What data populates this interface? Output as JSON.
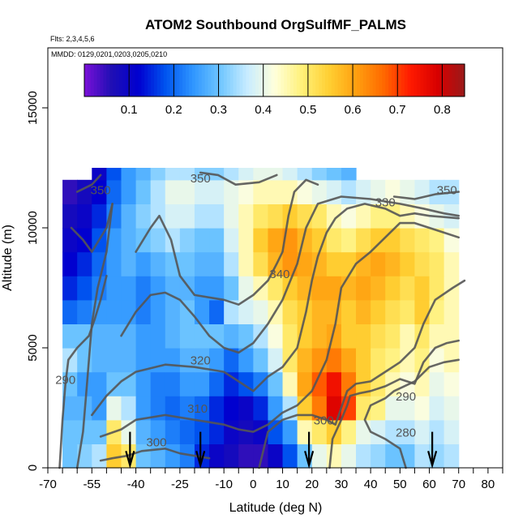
{
  "chart_data": {
    "type": "heatmap",
    "title": "ATOM2 Southbound OrgSulfMF_PALMS",
    "flights_label": "Flts: 2,3,4,5,6",
    "dates_label": "MMDD: 0129,0201,0203,0205,0210",
    "xlabel": "Latitude (deg N)",
    "ylabel": "Altitude (m)",
    "xlim": [
      -70,
      85
    ],
    "ylim": [
      0,
      17500
    ],
    "x_ticks": [
      -70,
      -55,
      -40,
      -25,
      -10,
      0,
      10,
      20,
      30,
      40,
      50,
      60,
      70,
      80
    ],
    "y_ticks": [
      0,
      5000,
      10000,
      15000
    ],
    "colorbar": {
      "min": 0.0,
      "max": 0.85,
      "ticks": [
        0.1,
        0.2,
        0.3,
        0.4,
        0.5,
        0.6,
        0.7,
        0.8
      ],
      "colors": [
        "#7b10d8",
        "#1f0fb4",
        "#0000d0",
        "#0055f0",
        "#2f96ff",
        "#6fc6ff",
        "#c8ecff",
        "#ffffdc",
        "#fff17a",
        "#ffd033",
        "#ffa010",
        "#ff6a00",
        "#ff1a00",
        "#d80000",
        "#9a1a1a"
      ]
    },
    "altitude_bins": [
      0,
      1000,
      2000,
      3000,
      4000,
      5000,
      6000,
      7000,
      8000,
      9000,
      10000,
      11000,
      12000,
      12500
    ],
    "lat_bins": [
      -65,
      -60,
      -55,
      -50,
      -45,
      -40,
      -35,
      -30,
      -25,
      -20,
      -15,
      -10,
      -5,
      0,
      5,
      10,
      15,
      20,
      25,
      30,
      35,
      40,
      45,
      50,
      55,
      60,
      65,
      70
    ],
    "values": [
      [
        0.3,
        0.32,
        0.35,
        0.55,
        0.5,
        0.3,
        0.28,
        0.25,
        0.22,
        0.15,
        0.1,
        0.08,
        0.05,
        0.05,
        0.1,
        0.18,
        0.3,
        0.4,
        0.45,
        0.4,
        0.35,
        0.33,
        0.3,
        0.3,
        0.35,
        0.33,
        0.35
      ],
      [
        0.3,
        0.3,
        0.3,
        0.5,
        0.4,
        0.28,
        0.25,
        0.22,
        0.2,
        0.18,
        0.15,
        0.1,
        0.08,
        0.1,
        0.18,
        0.25,
        0.45,
        0.5,
        0.55,
        0.48,
        0.4,
        0.38,
        0.35,
        0.35,
        0.38,
        0.35,
        0.38
      ],
      [
        0.28,
        0.28,
        0.25,
        0.4,
        0.35,
        0.25,
        0.22,
        0.2,
        0.22,
        0.2,
        0.15,
        0.12,
        0.1,
        0.15,
        0.25,
        0.35,
        0.55,
        0.65,
        0.78,
        0.7,
        0.5,
        0.48,
        0.4,
        0.4,
        0.42,
        0.38,
        0.4
      ],
      [
        0.3,
        0.25,
        0.25,
        0.3,
        0.3,
        0.25,
        0.22,
        0.22,
        0.25,
        0.25,
        0.2,
        0.15,
        0.18,
        0.22,
        0.3,
        0.45,
        0.6,
        0.68,
        0.75,
        0.65,
        0.55,
        0.5,
        0.45,
        0.42,
        0.45,
        0.4,
        0.42
      ],
      [
        0.35,
        0.3,
        0.28,
        0.28,
        0.28,
        0.25,
        0.25,
        0.25,
        0.28,
        0.28,
        0.25,
        0.2,
        0.25,
        0.3,
        0.38,
        0.5,
        0.58,
        0.62,
        0.65,
        0.6,
        0.55,
        0.5,
        0.48,
        0.45,
        0.48,
        0.42,
        0.45
      ],
      [
        0.3,
        0.3,
        0.28,
        0.28,
        0.28,
        0.25,
        0.25,
        0.28,
        0.3,
        0.3,
        0.3,
        0.28,
        0.3,
        0.35,
        0.42,
        0.5,
        0.55,
        0.58,
        0.6,
        0.55,
        0.55,
        0.52,
        0.5,
        0.45,
        0.5,
        0.45,
        0.45
      ],
      [
        0.2,
        0.22,
        0.25,
        0.25,
        0.25,
        0.22,
        0.25,
        0.28,
        0.3,
        0.25,
        0.2,
        0.35,
        0.38,
        0.4,
        0.45,
        0.52,
        0.55,
        0.58,
        0.58,
        0.55,
        0.58,
        0.55,
        0.52,
        0.5,
        0.55,
        0.48,
        0.45
      ],
      [
        0.15,
        0.18,
        0.22,
        0.25,
        0.25,
        0.22,
        0.25,
        0.28,
        0.28,
        0.25,
        0.25,
        0.3,
        0.4,
        0.45,
        0.5,
        0.55,
        0.58,
        0.6,
        0.6,
        0.58,
        0.6,
        0.58,
        0.55,
        0.52,
        0.55,
        0.5,
        0.45
      ],
      [
        0.12,
        0.15,
        0.2,
        0.25,
        0.28,
        0.25,
        0.28,
        0.3,
        0.3,
        0.28,
        0.28,
        0.35,
        0.45,
        0.52,
        0.58,
        0.62,
        0.6,
        0.58,
        0.55,
        0.55,
        0.58,
        0.6,
        0.58,
        0.55,
        0.52,
        0.5,
        0.45
      ],
      [
        0.1,
        0.12,
        0.18,
        0.25,
        0.28,
        0.3,
        0.32,
        0.35,
        0.32,
        0.3,
        0.3,
        0.38,
        0.45,
        0.55,
        0.6,
        0.62,
        0.58,
        0.55,
        0.5,
        0.48,
        0.52,
        0.55,
        0.55,
        0.52,
        0.5,
        0.48,
        0.42
      ],
      [
        0.08,
        0.1,
        0.15,
        0.22,
        0.28,
        0.32,
        0.35,
        0.38,
        0.38,
        0.35,
        0.35,
        0.4,
        0.45,
        0.5,
        0.52,
        0.55,
        0.52,
        0.5,
        0.45,
        0.42,
        0.45,
        0.48,
        0.48,
        0.45,
        0.42,
        0.4,
        0.38
      ],
      [
        0.05,
        0.08,
        0.12,
        0.2,
        0.25,
        0.3,
        0.35,
        0.4,
        0.4,
        0.38,
        0.38,
        0.4,
        0.42,
        0.45,
        0.45,
        0.45,
        0.42,
        0.4,
        0.38,
        0.35,
        0.38,
        0.4,
        0.42,
        0.4,
        0.38,
        0.35,
        0.35
      ],
      [
        null,
        null,
        0.1,
        0.18,
        0.25,
        0.28,
        0.32,
        0.35,
        0.35,
        0.32,
        0.32,
        0.35,
        0.38,
        0.4,
        0.4,
        0.38,
        0.35,
        0.32,
        0.3,
        0.28,
        null,
        null,
        null,
        null,
        null,
        null,
        null
      ]
    ],
    "contours": [
      {
        "label": "280",
        "points": [
          [
            52,
            0
          ],
          [
            50,
            800
          ],
          [
            45,
            1200
          ],
          [
            40,
            1500
          ],
          [
            38,
            2000
          ],
          [
            40,
            2600
          ],
          [
            45,
            2900
          ],
          [
            48,
            3200
          ],
          [
            55,
            3600
          ],
          [
            60,
            4200
          ],
          [
            65,
            4400
          ],
          [
            70,
            4500
          ]
        ]
      },
      {
        "label": "290",
        "points": [
          [
            -66,
            0
          ],
          [
            -65,
            2000
          ],
          [
            -64,
            3500
          ],
          [
            -63,
            4500
          ],
          [
            -60,
            5000
          ],
          [
            -56,
            5500
          ],
          [
            -54,
            6200
          ],
          [
            -52,
            7000
          ],
          [
            -50,
            8000
          ]
        ]
      },
      {
        "label": "290",
        "points": [
          [
            26,
            0
          ],
          [
            27,
            1200
          ],
          [
            30,
            2000
          ],
          [
            32,
            2600
          ],
          [
            33,
            3000
          ],
          [
            36,
            3100
          ],
          [
            40,
            3200
          ],
          [
            45,
            3400
          ],
          [
            50,
            3700
          ],
          [
            55,
            3500
          ],
          [
            58,
            4400
          ],
          [
            62,
            5000
          ],
          [
            66,
            5200
          ],
          [
            70,
            5300
          ]
        ]
      },
      {
        "label": "300",
        "points": [
          [
            -52,
            300
          ],
          [
            -48,
            400
          ],
          [
            -43,
            500
          ],
          [
            -38,
            700
          ],
          [
            -30,
            800
          ],
          [
            -25,
            600
          ],
          [
            -20,
            500
          ],
          [
            -15,
            400
          ]
        ]
      },
      {
        "label": "300",
        "points": [
          [
            -60,
            0
          ],
          [
            -58,
            1500
          ],
          [
            -57,
            3000
          ],
          [
            -56,
            4500
          ],
          [
            -55,
            6000
          ],
          [
            -53,
            7500
          ],
          [
            -50,
            9000
          ],
          [
            -49,
            10000
          ],
          [
            -48,
            11000
          ]
        ]
      },
      {
        "label": "300",
        "points": [
          [
            2,
            0
          ],
          [
            5,
            1500
          ],
          [
            10,
            2000
          ],
          [
            15,
            2200
          ],
          [
            20,
            2200
          ],
          [
            25,
            2000
          ],
          [
            28,
            1800
          ],
          [
            30,
            2500
          ],
          [
            32,
            3200
          ],
          [
            35,
            3500
          ],
          [
            40,
            3600
          ],
          [
            45,
            4000
          ],
          [
            50,
            4400
          ],
          [
            55,
            5000
          ],
          [
            58,
            6000
          ],
          [
            62,
            7000
          ],
          [
            68,
            7500
          ],
          [
            72,
            7800
          ]
        ]
      },
      {
        "label": "310",
        "points": [
          [
            -52,
            1300
          ],
          [
            -45,
            1600
          ],
          [
            -40,
            2000
          ],
          [
            -30,
            2200
          ],
          [
            -20,
            2000
          ],
          [
            -10,
            1800
          ],
          [
            -5,
            1600
          ],
          [
            0,
            1500
          ],
          [
            5,
            1800
          ],
          [
            10,
            2300
          ],
          [
            15,
            2600
          ],
          [
            20,
            3200
          ],
          [
            25,
            4500
          ],
          [
            28,
            6000
          ],
          [
            30,
            7500
          ],
          [
            35,
            8500
          ],
          [
            40,
            9000
          ],
          [
            45,
            9600
          ],
          [
            50,
            10200
          ],
          [
            55,
            10200
          ],
          [
            60,
            10000
          ],
          [
            65,
            9800
          ],
          [
            70,
            9600
          ]
        ]
      },
      {
        "label": "320",
        "points": [
          [
            -55,
            2200
          ],
          [
            -50,
            3000
          ],
          [
            -45,
            3600
          ],
          [
            -40,
            4000
          ],
          [
            -30,
            4300
          ],
          [
            -20,
            4200
          ],
          [
            -10,
            4000
          ],
          [
            -5,
            3600
          ],
          [
            0,
            3200
          ],
          [
            5,
            3800
          ],
          [
            10,
            4200
          ],
          [
            15,
            5000
          ],
          [
            18,
            6500
          ],
          [
            20,
            7800
          ],
          [
            22,
            8800
          ],
          [
            25,
            9800
          ],
          [
            28,
            10400
          ],
          [
            32,
            10800
          ],
          [
            38,
            11000
          ],
          [
            45,
            10800
          ],
          [
            50,
            10500
          ],
          [
            55,
            10600
          ],
          [
            60,
            10500
          ],
          [
            70,
            10400
          ]
        ]
      },
      {
        "label": "330",
        "points": [
          [
            -45,
            5500
          ],
          [
            -40,
            6500
          ],
          [
            -35,
            7200
          ],
          [
            -30,
            7300
          ],
          [
            -25,
            7000
          ],
          [
            -20,
            6300
          ],
          [
            -15,
            5500
          ],
          [
            -10,
            5000
          ],
          [
            -5,
            4800
          ],
          [
            0,
            5200
          ],
          [
            5,
            6000
          ],
          [
            10,
            7000
          ],
          [
            15,
            8500
          ],
          [
            18,
            10000
          ],
          [
            22,
            11000
          ],
          [
            30,
            11300
          ],
          [
            40,
            11200
          ],
          [
            50,
            11000
          ],
          [
            58,
            10800
          ],
          [
            65,
            10600
          ],
          [
            70,
            10500
          ]
        ]
      },
      {
        "label": "330",
        "points": [
          [
            -62,
            10000
          ],
          [
            -58,
            9500
          ],
          [
            -55,
            9000
          ],
          [
            -50,
            10000
          ],
          [
            -48,
            11000
          ]
        ]
      },
      {
        "label": "340",
        "points": [
          [
            -40,
            9000
          ],
          [
            -35,
            10000
          ],
          [
            -32,
            10500
          ],
          [
            -28,
            9500
          ],
          [
            -25,
            8000
          ],
          [
            -20,
            7200
          ],
          [
            -10,
            7000
          ],
          [
            -5,
            6800
          ],
          [
            0,
            7200
          ],
          [
            5,
            7800
          ],
          [
            8,
            8500
          ],
          [
            10,
            9000
          ],
          [
            12,
            10500
          ],
          [
            14,
            11500
          ],
          [
            18,
            12000
          ],
          [
            22,
            11800
          ]
        ]
      },
      {
        "label": "350",
        "points": [
          [
            -60,
            11500
          ],
          [
            -55,
            11800
          ],
          [
            -52,
            12200
          ]
        ]
      },
      {
        "label": "350",
        "points": [
          [
            48,
            11300
          ],
          [
            55,
            11200
          ],
          [
            62,
            11400
          ],
          [
            70,
            11500
          ]
        ]
      },
      {
        "label": "350",
        "points": [
          [
            -18,
            12300
          ],
          [
            -12,
            12200
          ],
          [
            -6,
            11800
          ],
          [
            2,
            11900
          ],
          [
            8,
            12200
          ]
        ]
      }
    ],
    "contour_labels": [
      {
        "text": "350",
        "x": -52,
        "y": 11400
      },
      {
        "text": "350",
        "x": -18,
        "y": 11900
      },
      {
        "text": "330",
        "x": 45,
        "y": 10900
      },
      {
        "text": "350",
        "x": 66,
        "y": 11400
      },
      {
        "text": "340",
        "x": 9,
        "y": 7900
      },
      {
        "text": "320",
        "x": -18,
        "y": 4300
      },
      {
        "text": "290",
        "x": -64,
        "y": 3500
      },
      {
        "text": "310",
        "x": -19,
        "y": 2300
      },
      {
        "text": "300",
        "x": 24,
        "y": 1800
      },
      {
        "text": "290",
        "x": 52,
        "y": 2800
      },
      {
        "text": "280",
        "x": 52,
        "y": 1300
      },
      {
        "text": "300",
        "x": -33,
        "y": 900
      }
    ],
    "arrows": [
      -42,
      -18,
      19,
      61
    ]
  }
}
